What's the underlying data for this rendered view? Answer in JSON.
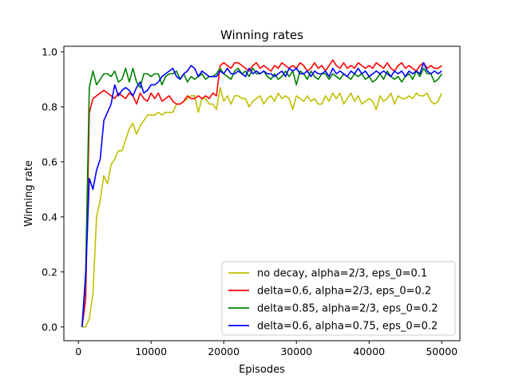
{
  "chart_data": {
    "type": "line",
    "title": "Winning rates",
    "xlabel": "Episodes",
    "ylabel": "Winning rate",
    "xlim": [
      -2000,
      52500
    ],
    "ylim": [
      -0.05,
      1.02
    ],
    "xticks": [
      0,
      10000,
      20000,
      30000,
      40000,
      50000
    ],
    "xtick_labels": [
      "0",
      "10000",
      "20000",
      "30000",
      "40000",
      "50000"
    ],
    "yticks": [
      0.0,
      0.2,
      0.4,
      0.6,
      0.8,
      1.0
    ],
    "ytick_labels": [
      "0.0",
      "0.2",
      "0.4",
      "0.6",
      "0.8",
      "1.0"
    ],
    "grid": false,
    "legend_position": "lower-right",
    "x": [
      500,
      1000,
      1500,
      2000,
      2500,
      3000,
      3500,
      4000,
      4500,
      5000,
      5500,
      6000,
      6500,
      7000,
      7500,
      8000,
      8500,
      9000,
      9500,
      10000,
      10500,
      11000,
      11500,
      12000,
      12500,
      13000,
      13500,
      14000,
      14500,
      15000,
      15500,
      16000,
      16500,
      17000,
      17500,
      18000,
      18500,
      19000,
      19500,
      20000,
      20500,
      21000,
      21500,
      22000,
      22500,
      23000,
      23500,
      24000,
      24500,
      25000,
      25500,
      26000,
      26500,
      27000,
      27500,
      28000,
      28500,
      29000,
      29500,
      30000,
      30500,
      31000,
      31500,
      32000,
      32500,
      33000,
      33500,
      34000,
      34500,
      35000,
      35500,
      36000,
      36500,
      37000,
      37500,
      38000,
      38500,
      39000,
      39500,
      40000,
      40500,
      41000,
      41500,
      42000,
      42500,
      43000,
      43500,
      44000,
      44500,
      45000,
      45500,
      46000,
      46500,
      47000,
      47500,
      48000,
      48500,
      49000,
      49500,
      50000
    ],
    "series": [
      {
        "name": "no decay, alpha=2/3, eps_0=0.1",
        "color": "#bfbf00",
        "values": [
          0.0,
          0.0,
          0.03,
          0.12,
          0.4,
          0.46,
          0.55,
          0.52,
          0.59,
          0.61,
          0.64,
          0.64,
          0.68,
          0.72,
          0.74,
          0.7,
          0.73,
          0.75,
          0.77,
          0.77,
          0.77,
          0.78,
          0.77,
          0.78,
          0.78,
          0.78,
          0.81,
          0.81,
          0.82,
          0.83,
          0.84,
          0.84,
          0.78,
          0.83,
          0.83,
          0.81,
          0.81,
          0.79,
          0.87,
          0.82,
          0.84,
          0.81,
          0.84,
          0.84,
          0.83,
          0.83,
          0.8,
          0.82,
          0.83,
          0.84,
          0.81,
          0.83,
          0.84,
          0.82,
          0.85,
          0.83,
          0.84,
          0.83,
          0.79,
          0.84,
          0.83,
          0.82,
          0.84,
          0.82,
          0.83,
          0.81,
          0.81,
          0.84,
          0.82,
          0.85,
          0.83,
          0.85,
          0.81,
          0.83,
          0.85,
          0.82,
          0.84,
          0.81,
          0.82,
          0.83,
          0.82,
          0.79,
          0.84,
          0.82,
          0.83,
          0.85,
          0.81,
          0.84,
          0.83,
          0.83,
          0.84,
          0.83,
          0.85,
          0.84,
          0.84,
          0.85,
          0.82,
          0.81,
          0.82,
          0.85
        ]
      },
      {
        "name": "delta=0.6, alpha=2/3, eps_0=0.2",
        "color": "#ff0000",
        "values": [
          0.0,
          0.1,
          0.78,
          0.83,
          0.84,
          0.85,
          0.86,
          0.85,
          0.84,
          0.83,
          0.85,
          0.84,
          0.83,
          0.85,
          0.84,
          0.81,
          0.85,
          0.83,
          0.82,
          0.85,
          0.83,
          0.85,
          0.82,
          0.83,
          0.84,
          0.82,
          0.81,
          0.81,
          0.82,
          0.84,
          0.83,
          0.83,
          0.84,
          0.83,
          0.84,
          0.83,
          0.85,
          0.84,
          0.95,
          0.96,
          0.95,
          0.94,
          0.96,
          0.96,
          0.95,
          0.94,
          0.93,
          0.95,
          0.96,
          0.94,
          0.95,
          0.94,
          0.93,
          0.95,
          0.94,
          0.96,
          0.95,
          0.94,
          0.95,
          0.94,
          0.96,
          0.95,
          0.93,
          0.94,
          0.96,
          0.94,
          0.95,
          0.93,
          0.95,
          0.97,
          0.95,
          0.94,
          0.96,
          0.94,
          0.95,
          0.94,
          0.96,
          0.95,
          0.94,
          0.95,
          0.94,
          0.96,
          0.95,
          0.94,
          0.96,
          0.94,
          0.93,
          0.95,
          0.96,
          0.94,
          0.95,
          0.94,
          0.93,
          0.95,
          0.96,
          0.94,
          0.95,
          0.94,
          0.94,
          0.95
        ]
      },
      {
        "name": "delta=0.85, alpha=2/3, eps_0=0.2",
        "color": "#008000",
        "values": [
          0.0,
          0.2,
          0.87,
          0.93,
          0.88,
          0.9,
          0.92,
          0.92,
          0.91,
          0.93,
          0.89,
          0.9,
          0.94,
          0.89,
          0.94,
          0.89,
          0.87,
          0.92,
          0.92,
          0.91,
          0.92,
          0.92,
          0.88,
          0.91,
          0.92,
          0.92,
          0.93,
          0.9,
          0.92,
          0.89,
          0.91,
          0.9,
          0.91,
          0.92,
          0.9,
          0.91,
          0.91,
          0.92,
          0.94,
          0.92,
          0.91,
          0.9,
          0.93,
          0.94,
          0.92,
          0.93,
          0.91,
          0.94,
          0.92,
          0.92,
          0.93,
          0.91,
          0.9,
          0.92,
          0.9,
          0.91,
          0.93,
          0.91,
          0.93,
          0.88,
          0.93,
          0.92,
          0.9,
          0.93,
          0.91,
          0.9,
          0.92,
          0.92,
          0.9,
          0.92,
          0.91,
          0.9,
          0.92,
          0.91,
          0.9,
          0.92,
          0.91,
          0.92,
          0.9,
          0.91,
          0.89,
          0.9,
          0.92,
          0.9,
          0.93,
          0.91,
          0.9,
          0.91,
          0.89,
          0.91,
          0.92,
          0.9,
          0.93,
          0.91,
          0.94,
          0.92,
          0.92,
          0.89,
          0.9,
          0.92
        ]
      },
      {
        "name": "delta=0.6, alpha=0.75, eps_0=0.2",
        "color": "#0000ff",
        "values": [
          0.0,
          0.18,
          0.54,
          0.5,
          0.57,
          0.61,
          0.75,
          0.78,
          0.81,
          0.88,
          0.84,
          0.86,
          0.87,
          0.86,
          0.84,
          0.87,
          0.89,
          0.85,
          0.86,
          0.88,
          0.88,
          0.89,
          0.91,
          0.92,
          0.93,
          0.94,
          0.91,
          0.9,
          0.92,
          0.93,
          0.95,
          0.94,
          0.91,
          0.93,
          0.92,
          0.91,
          0.91,
          0.91,
          0.93,
          0.92,
          0.94,
          0.92,
          0.92,
          0.93,
          0.92,
          0.91,
          0.94,
          0.92,
          0.93,
          0.92,
          0.93,
          0.92,
          0.92,
          0.91,
          0.92,
          0.93,
          0.91,
          0.94,
          0.93,
          0.94,
          0.92,
          0.92,
          0.93,
          0.91,
          0.93,
          0.92,
          0.92,
          0.93,
          0.91,
          0.94,
          0.92,
          0.93,
          0.92,
          0.91,
          0.93,
          0.92,
          0.94,
          0.92,
          0.93,
          0.91,
          0.92,
          0.93,
          0.92,
          0.93,
          0.92,
          0.91,
          0.93,
          0.92,
          0.93,
          0.91,
          0.93,
          0.92,
          0.93,
          0.92,
          0.96,
          0.93,
          0.92,
          0.93,
          0.92,
          0.93
        ]
      }
    ]
  }
}
